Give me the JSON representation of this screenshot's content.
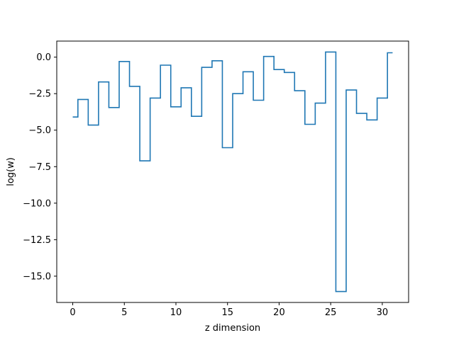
{
  "chart_data": {
    "type": "line",
    "drawstyle": "steps-mid",
    "title": "",
    "xlabel": "z dimension",
    "ylabel": "log(w)",
    "xlim": [
      -1.55,
      32.55
    ],
    "ylim": [
      -16.8,
      1.1
    ],
    "grid": false,
    "xticks": [
      0,
      5,
      10,
      15,
      20,
      25,
      30
    ],
    "xtick_labels": [
      "0",
      "5",
      "10",
      "15",
      "20",
      "25",
      "30"
    ],
    "yticks": [
      0.0,
      -2.5,
      -5.0,
      -7.5,
      -10.0,
      -12.5,
      -15.0
    ],
    "ytick_labels": [
      "0.0",
      "−2.5",
      "−5.0",
      "−7.5",
      "−10.0",
      "−12.5",
      "−15.0"
    ],
    "series": [
      {
        "name": "",
        "color": "#1f77b4",
        "x": [
          0,
          1,
          2,
          3,
          4,
          5,
          6,
          7,
          8,
          9,
          10,
          11,
          12,
          13,
          14,
          15,
          16,
          17,
          18,
          19,
          20,
          21,
          22,
          23,
          24,
          25,
          26,
          27,
          28,
          29,
          30,
          31
        ],
        "values": [
          -4.1,
          -2.9,
          -4.65,
          -1.7,
          -3.45,
          -0.3,
          -2.0,
          -7.1,
          -2.8,
          -0.55,
          -3.4,
          -2.1,
          -4.05,
          -0.7,
          -0.25,
          -6.2,
          -2.5,
          -1.0,
          -2.95,
          0.05,
          -0.85,
          -1.05,
          -2.3,
          -4.6,
          -3.15,
          0.35,
          -16.05,
          -2.25,
          -3.85,
          -4.3,
          -2.8,
          0.3
        ]
      }
    ]
  }
}
